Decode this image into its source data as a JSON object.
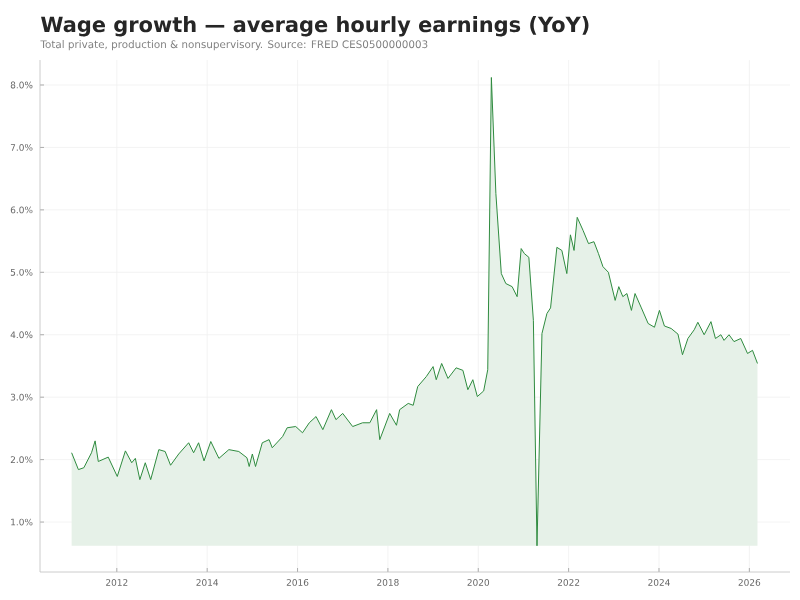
{
  "chart_data": {
    "type": "area",
    "title": "Wage growth — average hourly earnings (YoY)",
    "subtitle": "Total private, production & nonsupervisory. Source: FRED CES0500000003",
    "x": [
      2011.0,
      2011.15,
      2011.27,
      2011.44,
      2011.52,
      2011.59,
      2011.81,
      2012.01,
      2012.19,
      2012.33,
      2012.41,
      2012.51,
      2012.63,
      2012.75,
      2012.93,
      2013.07,
      2013.19,
      2013.37,
      2013.59,
      2013.7,
      2013.81,
      2013.93,
      2014.08,
      2014.26,
      2014.48,
      2014.7,
      2014.88,
      2014.93,
      2015.0,
      2015.07,
      2015.22,
      2015.37,
      2015.44,
      2015.67,
      2015.77,
      2015.96,
      2016.11,
      2016.26,
      2016.41,
      2016.56,
      2016.75,
      2016.85,
      2017.0,
      2017.22,
      2017.44,
      2017.6,
      2017.75,
      2017.82,
      2018.04,
      2018.19,
      2018.26,
      2018.45,
      2018.56,
      2018.66,
      2018.85,
      2019.0,
      2019.07,
      2019.19,
      2019.33,
      2019.51,
      2019.66,
      2019.77,
      2019.88,
      2019.98,
      2020.12,
      2020.21,
      2020.29,
      2020.39,
      2020.51,
      2020.61,
      2020.75,
      2020.86,
      2020.95,
      2021.02,
      2021.12,
      2021.22,
      2021.3,
      2021.41,
      2021.52,
      2021.6,
      2021.74,
      2021.85,
      2021.96,
      2022.04,
      2022.12,
      2022.19,
      2022.32,
      2022.44,
      2022.56,
      2022.66,
      2022.76,
      2022.88,
      2023.03,
      2023.11,
      2023.2,
      2023.29,
      2023.39,
      2023.47,
      2023.61,
      2023.76,
      2023.9,
      2024.01,
      2024.12,
      2024.27,
      2024.42,
      2024.52,
      2024.64,
      2024.78,
      2024.86,
      2025.0,
      2025.15,
      2025.25,
      2025.37,
      2025.44,
      2025.55,
      2025.66,
      2025.81,
      2025.96,
      2026.07,
      2026.18
    ],
    "series": [
      {
        "color": "#2e8b3e",
        "values": [
          2.11,
          1.84,
          1.87,
          2.11,
          2.3,
          1.97,
          2.04,
          1.73,
          2.14,
          1.95,
          2.02,
          1.68,
          1.95,
          1.68,
          2.16,
          2.13,
          1.91,
          2.09,
          2.27,
          2.11,
          2.27,
          1.98,
          2.29,
          2.02,
          2.16,
          2.13,
          2.03,
          1.89,
          2.09,
          1.89,
          2.27,
          2.32,
          2.19,
          2.37,
          2.51,
          2.53,
          2.43,
          2.59,
          2.69,
          2.48,
          2.8,
          2.64,
          2.74,
          2.53,
          2.59,
          2.59,
          2.8,
          2.32,
          2.74,
          2.55,
          2.8,
          2.9,
          2.87,
          3.17,
          3.33,
          3.49,
          3.28,
          3.54,
          3.3,
          3.47,
          3.43,
          3.12,
          3.28,
          3.01,
          3.1,
          3.44,
          8.12,
          6.26,
          4.98,
          4.82,
          4.77,
          4.61,
          5.38,
          5.3,
          5.24,
          4.23,
          0.62,
          4.02,
          4.34,
          4.43,
          5.4,
          5.35,
          4.98,
          5.6,
          5.35,
          5.88,
          5.67,
          5.46,
          5.49,
          5.3,
          5.09,
          5.0,
          4.55,
          4.77,
          4.61,
          4.66,
          4.39,
          4.66,
          4.43,
          4.18,
          4.12,
          4.39,
          4.14,
          4.1,
          4.01,
          3.68,
          3.94,
          4.08,
          4.2,
          4.0,
          4.21,
          3.94,
          4.0,
          3.91,
          4.0,
          3.89,
          3.94,
          3.7,
          3.75,
          3.54
        ]
      }
    ],
    "xlim": [
      2010.3,
      2026.9
    ],
    "ylim": [
      0.2,
      8.4
    ],
    "xticks": [
      2012,
      2014,
      2016,
      2018,
      2020,
      2022,
      2024,
      2026
    ],
    "yticks": [
      {
        "value": 1.0,
        "label": "1.0%"
      },
      {
        "value": 2.0,
        "label": "2.0%"
      },
      {
        "value": 3.0,
        "label": "3.0%"
      },
      {
        "value": 4.0,
        "label": "4.0%"
      },
      {
        "value": 5.0,
        "label": "5.0%"
      },
      {
        "value": 6.0,
        "label": "6.0%"
      },
      {
        "value": 7.0,
        "label": "7.0%"
      },
      {
        "value": 8.0,
        "label": "8.0%"
      }
    ],
    "grid": true
  }
}
